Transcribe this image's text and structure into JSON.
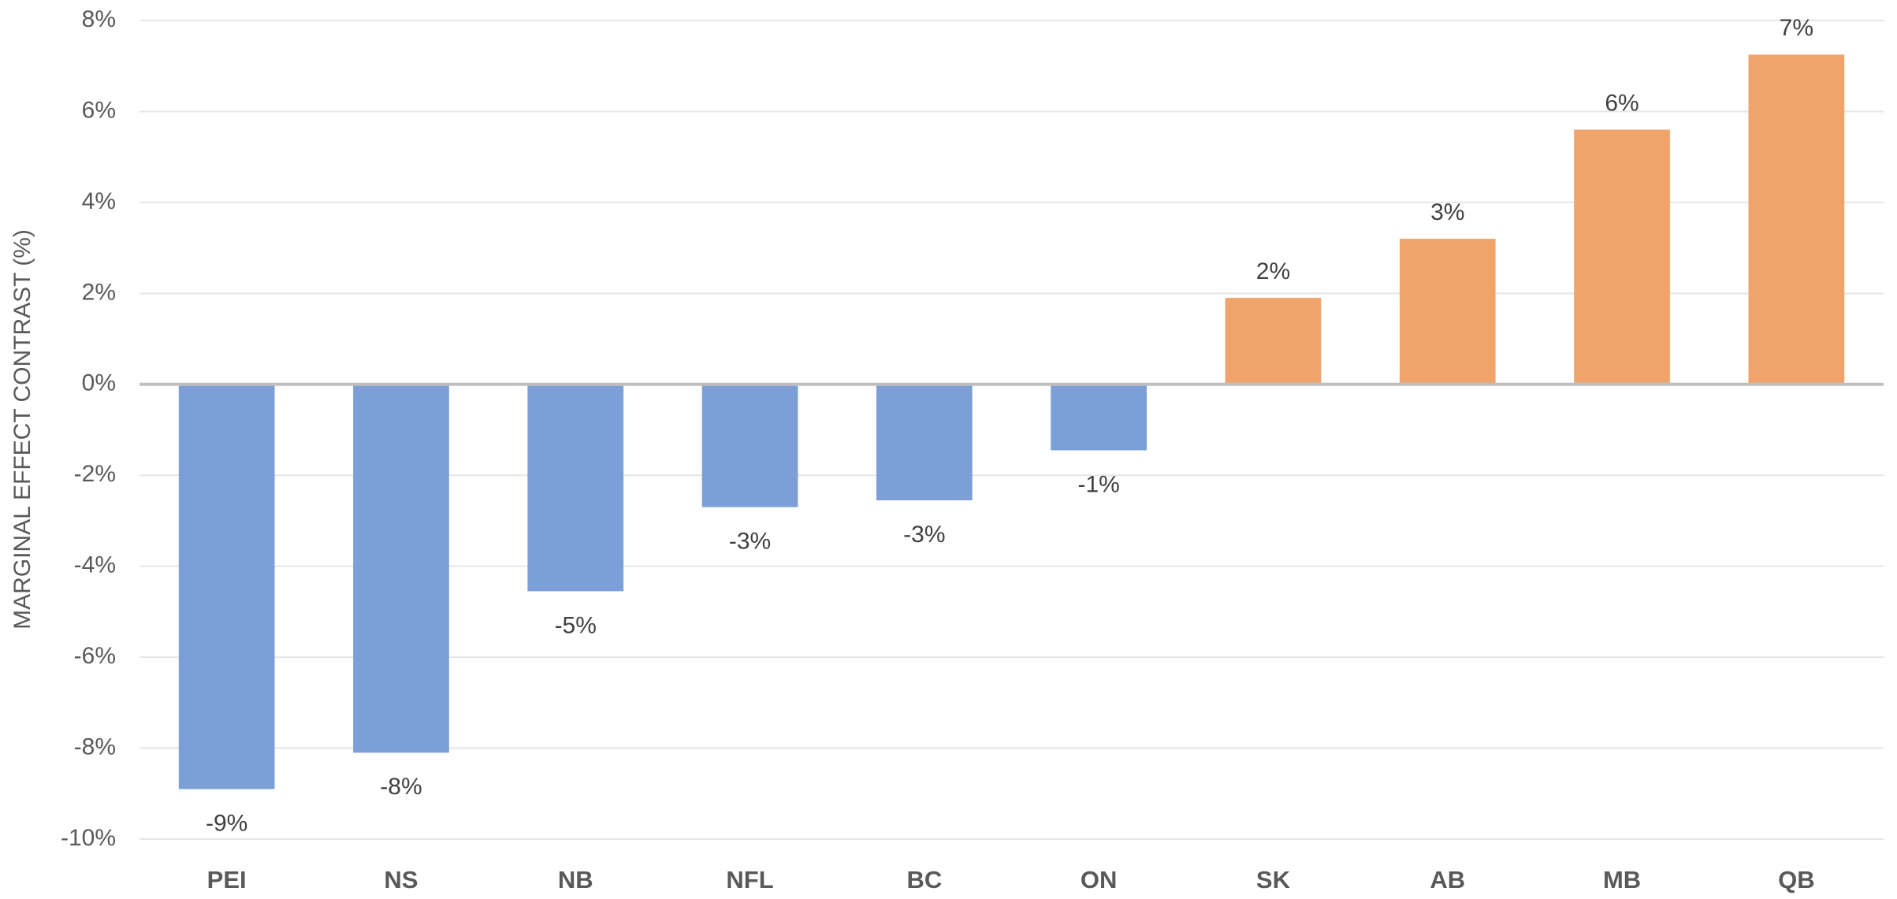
{
  "chart_data": {
    "type": "bar",
    "y_label": "MARGINAL EFFECT CONTRAST (%)",
    "categories": [
      "PEI",
      "NS",
      "NB",
      "NFL",
      "BC",
      "ON",
      "SK",
      "AB",
      "MB",
      "QB"
    ],
    "values": [
      -8.9,
      -8.1,
      -4.55,
      -2.7,
      -2.55,
      -1.45,
      1.9,
      3.2,
      5.6,
      7.25
    ],
    "value_labels": [
      "-9%",
      "-8%",
      "-5%",
      "-3%",
      "-3%",
      "-1%",
      "2%",
      "3%",
      "6%",
      "7%"
    ],
    "negative_color": "#7b9fd6",
    "positive_color": "#f0a46b",
    "ylim": [
      -10,
      8
    ],
    "yticks": [
      {
        "value": -10,
        "label": "-10%"
      },
      {
        "value": -8,
        "label": "-8%"
      },
      {
        "value": -6,
        "label": "-6%"
      },
      {
        "value": -4,
        "label": "-4%"
      },
      {
        "value": -2,
        "label": "-2%"
      },
      {
        "value": 0,
        "label": "0%"
      },
      {
        "value": 2,
        "label": "2%"
      },
      {
        "value": 4,
        "label": "4%"
      },
      {
        "value": 6,
        "label": "6%"
      },
      {
        "value": 8,
        "label": "8%"
      }
    ],
    "grid": true
  }
}
